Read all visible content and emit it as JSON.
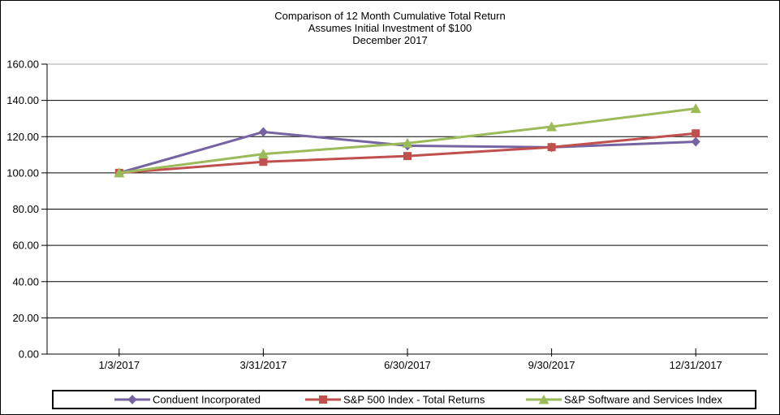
{
  "title": {
    "line1": "Comparison of 12 Month Cumulative Total Return",
    "line2": "Assumes Initial Investment of $100",
    "line3": "December 2017"
  },
  "chart_data": {
    "type": "line",
    "categories": [
      "1/3/2017",
      "3/31/2017",
      "6/30/2017",
      "9/30/2017",
      "12/31/2017"
    ],
    "series": [
      {
        "name": "Conduent Incorporated",
        "color": "#7663A2",
        "marker": "diamond",
        "values": [
          100.0,
          122.6,
          115.0,
          114.1,
          117.2
        ]
      },
      {
        "name": "S&P 500 Index - Total Returns",
        "color": "#C0504D",
        "marker": "square",
        "values": [
          100.0,
          106.1,
          109.3,
          114.2,
          121.8
        ]
      },
      {
        "name": "S&P Software and Services Index",
        "color": "#9BBB59",
        "marker": "triangle",
        "values": [
          100.0,
          110.4,
          116.4,
          125.5,
          135.5
        ]
      }
    ],
    "ylim": [
      0,
      160
    ],
    "ytick_step": 20,
    "ytick_labels": [
      "0.00",
      "20.00",
      "40.00",
      "60.00",
      "80.00",
      "100.00",
      "120.00",
      "140.00",
      "160.00"
    ],
    "xlabel": "",
    "ylabel": "",
    "grid": "horizontal",
    "legend_position": "bottom",
    "axis_color": "#000000",
    "gridline_color": "#000000",
    "plot_top_border_color": "#A6A6A6"
  }
}
